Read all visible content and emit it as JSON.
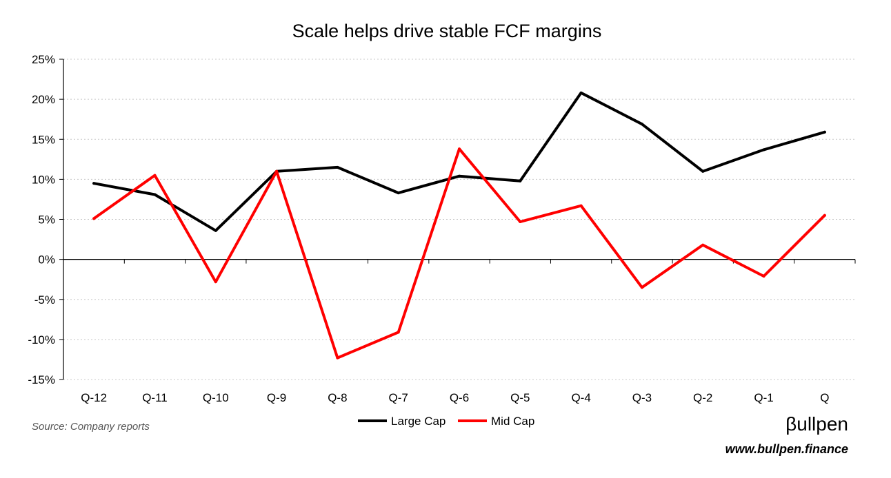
{
  "chart_data": {
    "type": "line",
    "title": "Scale helps drive stable FCF margins",
    "categories": [
      "Q-12",
      "Q-11",
      "Q-10",
      "Q-9",
      "Q-8",
      "Q-7",
      "Q-6",
      "Q-5",
      "Q-4",
      "Q-3",
      "Q-2",
      "Q-1",
      "Q"
    ],
    "series": [
      {
        "name": "Large Cap",
        "color": "#000000",
        "values": [
          9.5,
          8.1,
          3.6,
          11.0,
          11.5,
          8.3,
          10.4,
          9.8,
          20.8,
          16.9,
          11.0,
          13.7,
          15.9
        ]
      },
      {
        "name": "Mid Cap",
        "color": "#ff0000",
        "values": [
          5.1,
          10.5,
          -2.8,
          11.0,
          -12.3,
          -9.1,
          13.8,
          4.7,
          6.7,
          -3.5,
          1.8,
          -2.1,
          5.5
        ]
      }
    ],
    "ylim": [
      -15,
      25
    ],
    "yticks": [
      -15,
      -10,
      -5,
      0,
      5,
      10,
      15,
      20,
      25
    ],
    "ytick_labels": [
      "-15%",
      "-10%",
      "-5%",
      "0%",
      "5%",
      "10%",
      "15%",
      "20%",
      "25%"
    ],
    "grid": true,
    "legend_position": "bottom-center"
  },
  "footer": {
    "source": "Source: Company reports",
    "brand": "βullpen",
    "url": "www.bullpen.finance"
  }
}
